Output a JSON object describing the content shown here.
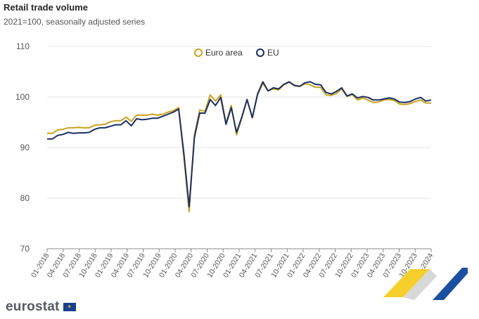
{
  "header": {
    "title": "Retail trade volume",
    "subtitle": "2021=100, seasonally adjusted series"
  },
  "footer": {
    "brand": "eurostat"
  },
  "colors": {
    "euro_area": "#c9a21e",
    "eu": "#1b2e63",
    "grid": "#e4e4e4",
    "axis": "#888888"
  },
  "chart_data": {
    "type": "line",
    "title": "Retail trade volume",
    "subtitle": "2021=100, seasonally adjusted series",
    "xlabel": "",
    "ylabel": "",
    "ylim": [
      70,
      110
    ],
    "yticks": [
      70,
      80,
      90,
      100,
      110
    ],
    "grid": true,
    "legend_position": "top-center",
    "x_tick_labels": [
      "01-2018",
      "04-2018",
      "07-2018",
      "10-2018",
      "01-2019",
      "04-2019",
      "07-2019",
      "10-2019",
      "01-2020",
      "04-2020",
      "07-2020",
      "10-2020",
      "01-2021",
      "04-2021",
      "07-2021",
      "10-2021",
      "01-2022",
      "04-2022",
      "07-2022",
      "10-2022",
      "01-2023",
      "04-2023",
      "07-2023",
      "10-2023",
      "01-2024"
    ],
    "x_start": "01-2018",
    "x_end": "01-2024",
    "series": [
      {
        "name": "Euro area",
        "values": [
          92.8,
          92.8,
          93.5,
          93.6,
          93.9,
          93.9,
          94.0,
          93.9,
          93.9,
          94.4,
          94.5,
          94.6,
          95.1,
          95.3,
          95.3,
          96.0,
          95.2,
          96.4,
          96.4,
          96.4,
          96.6,
          96.4,
          96.6,
          97.0,
          97.3,
          97.9,
          88.0,
          77.3,
          92.5,
          97.4,
          97.2,
          100.4,
          99.2,
          100.4,
          94.8,
          98.3,
          92.5,
          95.8,
          99.5,
          95.9,
          100.4,
          102.7,
          101.2,
          101.6,
          101.4,
          102.4,
          102.9,
          102.2,
          102.1,
          102.6,
          102.4,
          101.9,
          101.9,
          100.4,
          100.3,
          100.7,
          101.6,
          100.1,
          100.5,
          99.4,
          99.8,
          99.4,
          98.9,
          99.0,
          99.4,
          99.5,
          99.3,
          98.6,
          98.5,
          98.7,
          99.1,
          99.4,
          98.8,
          98.8
        ]
      },
      {
        "name": "EU",
        "values": [
          91.7,
          91.7,
          92.4,
          92.6,
          93.0,
          92.8,
          92.9,
          92.9,
          93.0,
          93.6,
          93.9,
          93.9,
          94.2,
          94.5,
          94.5,
          95.3,
          94.3,
          95.7,
          95.5,
          95.6,
          95.8,
          95.8,
          96.2,
          96.6,
          97.0,
          97.6,
          88.7,
          78.3,
          92.0,
          96.8,
          96.8,
          99.5,
          98.3,
          99.9,
          94.6,
          97.9,
          93.0,
          96.0,
          99.5,
          95.9,
          100.6,
          103.0,
          101.2,
          101.8,
          101.6,
          102.5,
          103.0,
          102.3,
          102.1,
          102.8,
          103.0,
          102.5,
          102.4,
          100.9,
          100.6,
          101.1,
          101.8,
          100.2,
          100.6,
          99.8,
          100.1,
          99.9,
          99.4,
          99.4,
          99.6,
          99.8,
          99.6,
          99.0,
          98.9,
          99.1,
          99.6,
          99.9,
          99.2,
          99.4
        ]
      }
    ]
  }
}
